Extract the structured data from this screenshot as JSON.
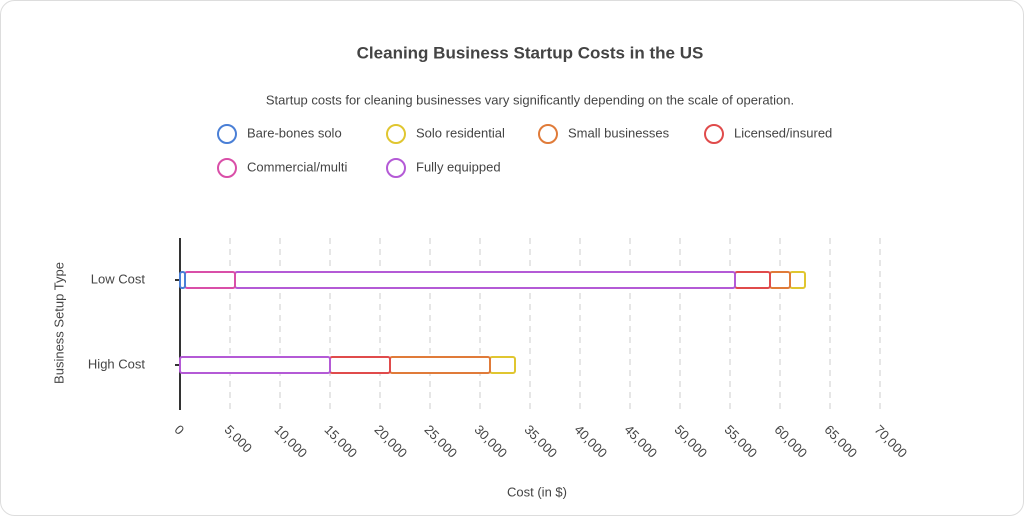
{
  "chart_data": {
    "type": "stacked_bar_horizontal",
    "title": "Cleaning Business Startup Costs in the US",
    "subtitle": "Startup costs for cleaning businesses vary significantly depending on the scale of operation.",
    "x_label": "Cost (in $)",
    "y_label": "Business Setup Type",
    "categories": [
      "Low Cost",
      "High Cost"
    ],
    "series": [
      {
        "name": "Bare-bones solo",
        "color": "#4a7fd6",
        "values": [
          500,
          0
        ]
      },
      {
        "name": "Solo residential",
        "color": "#e0c630",
        "values": [
          1500,
          2500
        ]
      },
      {
        "name": "Small businesses",
        "color": "#e07b39",
        "values": [
          2000,
          10000
        ]
      },
      {
        "name": "Licensed/insured",
        "color": "#e04b4b",
        "values": [
          3500,
          6000
        ]
      },
      {
        "name": "Commercial/multi",
        "color": "#d94fa8",
        "values": [
          5000,
          0
        ]
      },
      {
        "name": "Fully equipped",
        "color": "#b45ad6",
        "values": [
          50000,
          15000
        ]
      }
    ],
    "xlim": [
      0,
      70000
    ],
    "xticks": [
      0,
      {
        "value": 5000,
        "label": "5,000"
      },
      {
        "value": 10000,
        "label": "10,000"
      },
      {
        "value": 15000,
        "label": "15,000"
      },
      {
        "value": 20000,
        "label": "20,000"
      },
      {
        "value": 25000,
        "label": "25,000"
      },
      {
        "value": 30000,
        "label": "30,000"
      },
      {
        "value": 35000,
        "label": "35,000"
      },
      {
        "value": 40000,
        "label": "40,000"
      },
      {
        "value": 45000,
        "label": "45,000"
      },
      {
        "value": 50000,
        "label": "50,000"
      },
      {
        "value": 55000,
        "label": "55,000"
      },
      {
        "value": 60000,
        "label": "60,000"
      },
      {
        "value": 65000,
        "label": "65,000"
      },
      {
        "value": 70000,
        "label": "70,000"
      }
    ],
    "grid": true
  }
}
